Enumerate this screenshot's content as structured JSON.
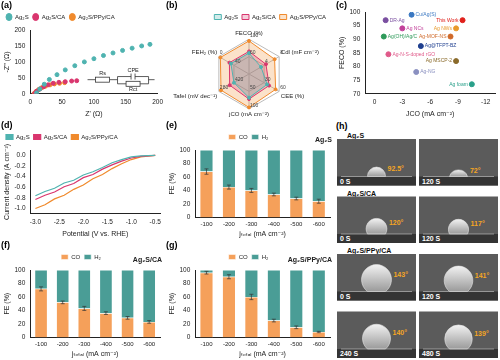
{
  "chart_data": [
    {
      "panel": "(a)",
      "type": "scatter",
      "x_label": "Z' (Ω)",
      "y_label": "-Z'' (Ω)",
      "xlim": [
        0,
        200
      ],
      "xticks": [
        0,
        50,
        100,
        150,
        200
      ],
      "ylim": [
        0,
        200
      ],
      "yticks": [
        0,
        50,
        100,
        150,
        200
      ],
      "grid": false,
      "legend": "top-left",
      "marker": "circle",
      "series": [
        {
          "name": "Ag₂S",
          "color": "#4fb3b0",
          "x": [
            10,
            15,
            22,
            30,
            42,
            55,
            70,
            85,
            100,
            115,
            130,
            145,
            160,
            175,
            188
          ],
          "values": [
            3,
            15,
            30,
            45,
            60,
            75,
            88,
            100,
            110,
            120,
            128,
            136,
            143,
            150,
            155
          ]
        },
        {
          "name": "Ag₂S/CA",
          "color": "#d9366e",
          "x": [
            7,
            10,
            15,
            21,
            28,
            36,
            45,
            55,
            65,
            73
          ],
          "values": [
            1,
            8,
            15,
            22,
            28,
            33,
            36,
            38,
            40,
            41
          ]
        },
        {
          "name": "Ag₂S/PPy/CA",
          "color": "#f08a2c",
          "x": [
            6,
            9,
            13,
            18,
            24,
            31,
            38,
            46,
            54
          ],
          "values": [
            1,
            7,
            13,
            19,
            24,
            28,
            31,
            33,
            35
          ]
        }
      ],
      "annotations": [
        "Rs",
        "CPE",
        "Rct"
      ]
    },
    {
      "panel": "(b)",
      "type": "radar",
      "legend": "top-right",
      "axes": [
        {
          "name": "FECO (%)",
          "lim": [
            20,
            100
          ],
          "ticks": [
            60,
            100
          ]
        },
        {
          "name": "Cdl (mF cm⁻²)",
          "lim": [
            0,
            8
          ],
          "ticks": [
            4,
            8
          ]
        },
        {
          "name": "CEE (%)",
          "lim": [
            0,
            60
          ],
          "ticks": [
            30,
            60
          ]
        },
        {
          "name": "jCO (mA cm⁻²)",
          "lim": [
            0,
            100
          ],
          "ticks": [
            50,
            100
          ]
        },
        {
          "name": "Tafel (mV dec⁻¹)",
          "lim": [
            560,
            280
          ],
          "ticks": [
            420,
            280
          ]
        },
        {
          "name": "FEH₂ (%)",
          "lim": [
            80,
            0
          ],
          "ticks": [
            40,
            0
          ]
        }
      ],
      "series": [
        {
          "name": "Ag₂S",
          "color": "#4fb3b0",
          "values": [
            68,
            3.2,
            36,
            68,
            420,
            32
          ]
        },
        {
          "name": "Ag₂S/CA",
          "color": "#d9366e",
          "values": [
            72,
            4.5,
            40,
            72,
            380,
            28
          ]
        },
        {
          "name": "Ag₂S/PPy/CA",
          "color": "#f08a2c",
          "values": [
            96,
            6.8,
            53,
            96,
            300,
            4
          ]
        }
      ]
    },
    {
      "panel": "(c)",
      "type": "scatter",
      "x_label": "JCO (mA cm⁻²)",
      "y_label": "FECO (%)",
      "xlim": [
        1,
        -13
      ],
      "xticks": [
        0,
        -3,
        -6,
        -9,
        -12
      ],
      "ylim": [
        70,
        100
      ],
      "yticks": [
        70,
        75,
        80,
        85,
        90,
        95,
        100
      ],
      "grid": false,
      "marker": "circle",
      "x": [
        -9.5,
        -1.2,
        -4.0,
        -8.8,
        -3.0,
        -8.2,
        -1.0,
        -5.0,
        -1.5,
        -8.8,
        -4.5,
        -10.5
      ],
      "values": [
        97,
        97,
        99,
        94,
        94,
        91,
        91,
        87.5,
        84.5,
        82,
        78,
        73.5
      ],
      "point_labels": [
        "This Work",
        "DR-Ag",
        "Cu/Ag(S)",
        "Ag NWs",
        "Ag NCs",
        "Ag-MOF-NS",
        "Ag(OH)/Ag/C",
        "Ag@TFPT-BZ",
        "Ag-N-S-doped rGO",
        "Ag MSCP-2",
        "Ag-NG",
        "Ag foam"
      ],
      "colors": [
        "#e0201b",
        "#7a4fa0",
        "#3a78c2",
        "#e89a2c",
        "#c2409a",
        "#d06a2a",
        "#2e9a5a",
        "#1f3f8f",
        "#e05a8a",
        "#8a6a2a",
        "#8a90c0",
        "#2aa08a"
      ]
    },
    {
      "panel": "(d)",
      "type": "line",
      "x_label": "Potential (V vs. RHE)",
      "y_label": "Current density (A cm⁻²)",
      "x": [
        -3.0,
        -2.8,
        -2.6,
        -2.4,
        -2.2,
        -2.0,
        -1.8,
        -1.6,
        -1.4,
        -1.2,
        -1.0,
        -0.8,
        -0.5
      ],
      "xlim": [
        -3.1,
        -0.4
      ],
      "xticks": [
        {
          "value": -3,
          "label": "-3.0"
        },
        -2.5,
        {
          "value": -2,
          "label": "-2.0"
        },
        -1.5,
        {
          "value": -1,
          "label": "-1.0"
        },
        -0.5
      ],
      "ylim": [
        -1.1,
        0.1
      ],
      "yticks": [
        {
          "value": 0,
          "label": "0.0"
        },
        -0.2,
        -0.4,
        -0.6,
        -0.8,
        {
          "value": -1,
          "label": "-1.0"
        }
      ],
      "grid": false,
      "legend": "top-left",
      "line_style": "solid",
      "series": [
        {
          "name": "Ag₂S",
          "color": "#4fb3b0",
          "values": [
            -0.76,
            -0.68,
            -0.62,
            -0.52,
            -0.47,
            -0.37,
            -0.31,
            -0.23,
            -0.14,
            -0.08,
            -0.03,
            -0.01,
            0
          ]
        },
        {
          "name": "Ag₂S/CA",
          "color": "#d9366e",
          "values": [
            -0.83,
            -0.75,
            -0.69,
            -0.59,
            -0.53,
            -0.42,
            -0.36,
            -0.26,
            -0.18,
            -0.11,
            -0.05,
            -0.02,
            0
          ]
        },
        {
          "name": "Ag₂S/PPy/CA",
          "color": "#f08a2c",
          "values": [
            -1.0,
            -0.93,
            -0.82,
            -0.75,
            -0.64,
            -0.56,
            -0.44,
            -0.36,
            -0.25,
            -0.16,
            -0.08,
            -0.03,
            0
          ]
        }
      ]
    },
    {
      "panel": "(e)",
      "type": "bar",
      "title": "Ag₂S",
      "x_label": "jₜₒₜₐₗ (mA cm⁻²)",
      "y_label": "FE (%)",
      "categories": [
        "-100",
        "-200",
        "-300",
        "-400",
        "-500",
        "-600"
      ],
      "ylim": [
        0,
        100
      ],
      "yticks": [
        0,
        20,
        40,
        60,
        80,
        100
      ],
      "grid": false,
      "stacked": true,
      "legend": "top",
      "series": [
        {
          "name": "CO",
          "color": "#f5a05a",
          "values": [
            68,
            45,
            40,
            34,
            28,
            24
          ],
          "errors": [
            4,
            3,
            3,
            2,
            2,
            3
          ]
        },
        {
          "name": "H₂",
          "color": "#4a9d96",
          "values": [
            32,
            55,
            60,
            66,
            72,
            76
          ]
        }
      ]
    },
    {
      "panel": "(f)",
      "type": "bar",
      "title": "Ag₂S/CA",
      "x_label": "jₜₒₜₐₗ (mA cm⁻²)",
      "y_label": "FE (%)",
      "categories": [
        "-100",
        "-200",
        "-300",
        "-400",
        "-500",
        "-600"
      ],
      "ylim": [
        0,
        100
      ],
      "yticks": [
        0,
        20,
        40,
        60,
        80,
        100
      ],
      "grid": false,
      "stacked": true,
      "legend": "top",
      "series": [
        {
          "name": "CO",
          "color": "#f5a05a",
          "values": [
            72,
            52,
            43,
            36,
            29,
            23
          ],
          "errors": [
            3,
            2,
            3,
            2,
            2,
            2
          ]
        },
        {
          "name": "H₂",
          "color": "#4a9d96",
          "values": [
            28,
            48,
            57,
            64,
            71,
            77
          ]
        }
      ]
    },
    {
      "panel": "(g)",
      "type": "bar",
      "title": "Ag₂S/PPy/CA",
      "x_label": "jₜₒₜₐₗ (mA cm⁻²)",
      "y_label": "FE (%)",
      "categories": [
        "-100",
        "-200",
        "-300",
        "-400",
        "-500",
        "-600"
      ],
      "ylim": [
        0,
        100
      ],
      "yticks": [
        0,
        20,
        40,
        60,
        80,
        100
      ],
      "grid": false,
      "stacked": true,
      "legend": "top",
      "series": [
        {
          "name": "CO",
          "color": "#f5a05a",
          "values": [
            96,
            90,
            60,
            25,
            15,
            8
          ],
          "errors": [
            2,
            3,
            4,
            2,
            2,
            1
          ]
        },
        {
          "name": "H₂",
          "color": "#4a9d96",
          "values": [
            4,
            10,
            40,
            75,
            85,
            92
          ]
        }
      ]
    }
  ],
  "photos": {
    "panel": "(h)",
    "rows": [
      {
        "label": "Ag₂S",
        "frames": [
          {
            "time": "0 S",
            "angle": 92.5,
            "angle_label": "92.5°"
          },
          {
            "time": "120 S",
            "angle": 72,
            "angle_label": "72°"
          }
        ]
      },
      {
        "label": "Ag₂S/CA",
        "frames": [
          {
            "time": "0 S",
            "angle": 120,
            "angle_label": "120°"
          },
          {
            "time": "120 S",
            "angle": 117,
            "angle_label": "117°"
          }
        ]
      },
      {
        "label": "Ag₂S/PPy/CA",
        "frames": [
          {
            "time": "0 S",
            "angle": 143,
            "angle_label": "143°"
          },
          {
            "time": "120 S",
            "angle": 141,
            "angle_label": "141°"
          }
        ]
      },
      {
        "frames": [
          {
            "time": "240 S",
            "angle": 140,
            "angle_label": "140°"
          },
          {
            "time": "480 S",
            "angle": 139,
            "angle_label": "139°"
          }
        ]
      }
    ]
  }
}
